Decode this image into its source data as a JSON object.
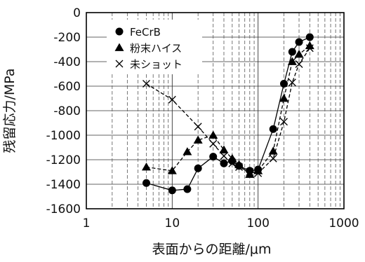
{
  "chart_data": {
    "type": "line",
    "x_scale": "log",
    "xlim": [
      1,
      1000
    ],
    "ylim": [
      -1600,
      0
    ],
    "xlabel": "表面からの距離/μm",
    "ylabel": "残留応力/MPa",
    "x_ticks": [
      "1",
      "10",
      "100",
      "1000"
    ],
    "y_ticks": [
      "0",
      "-200",
      "-400",
      "-600",
      "-800",
      "-1000",
      "-1200",
      "-1400",
      "-1600"
    ],
    "grid": true,
    "legend_position": "top-left",
    "series": [
      {
        "name": "FeCrB",
        "marker": "circle",
        "line": "solid",
        "color": "#000000",
        "x": [
          5,
          10,
          15,
          20,
          30,
          40,
          50,
          60,
          80,
          100,
          150,
          200,
          250,
          300,
          400
        ],
        "y": [
          -1390,
          -1450,
          -1440,
          -1270,
          -1175,
          -1230,
          -1210,
          -1250,
          -1290,
          -1280,
          -950,
          -580,
          -320,
          -240,
          -200
        ]
      },
      {
        "name": "粉末ハイス",
        "marker": "triangle",
        "line": "dashed",
        "color": "#000000",
        "x": [
          5,
          10,
          15,
          20,
          30,
          40,
          50,
          60,
          80,
          100,
          150,
          200,
          250,
          300,
          400
        ],
        "y": [
          -1260,
          -1290,
          -1135,
          -1040,
          -1000,
          -1120,
          -1190,
          -1240,
          -1320,
          -1290,
          -1130,
          -700,
          -400,
          -340,
          -270
        ]
      },
      {
        "name": "未ショット",
        "marker": "cross",
        "line": "dashed",
        "color": "#000000",
        "x": [
          5,
          10,
          20,
          30,
          40,
          50,
          60,
          80,
          100,
          150,
          200,
          250,
          300,
          400
        ],
        "y": [
          -580,
          -710,
          -930,
          -1070,
          -1170,
          -1230,
          -1260,
          -1300,
          -1310,
          -1190,
          -890,
          -570,
          -420,
          -290
        ]
      }
    ]
  }
}
